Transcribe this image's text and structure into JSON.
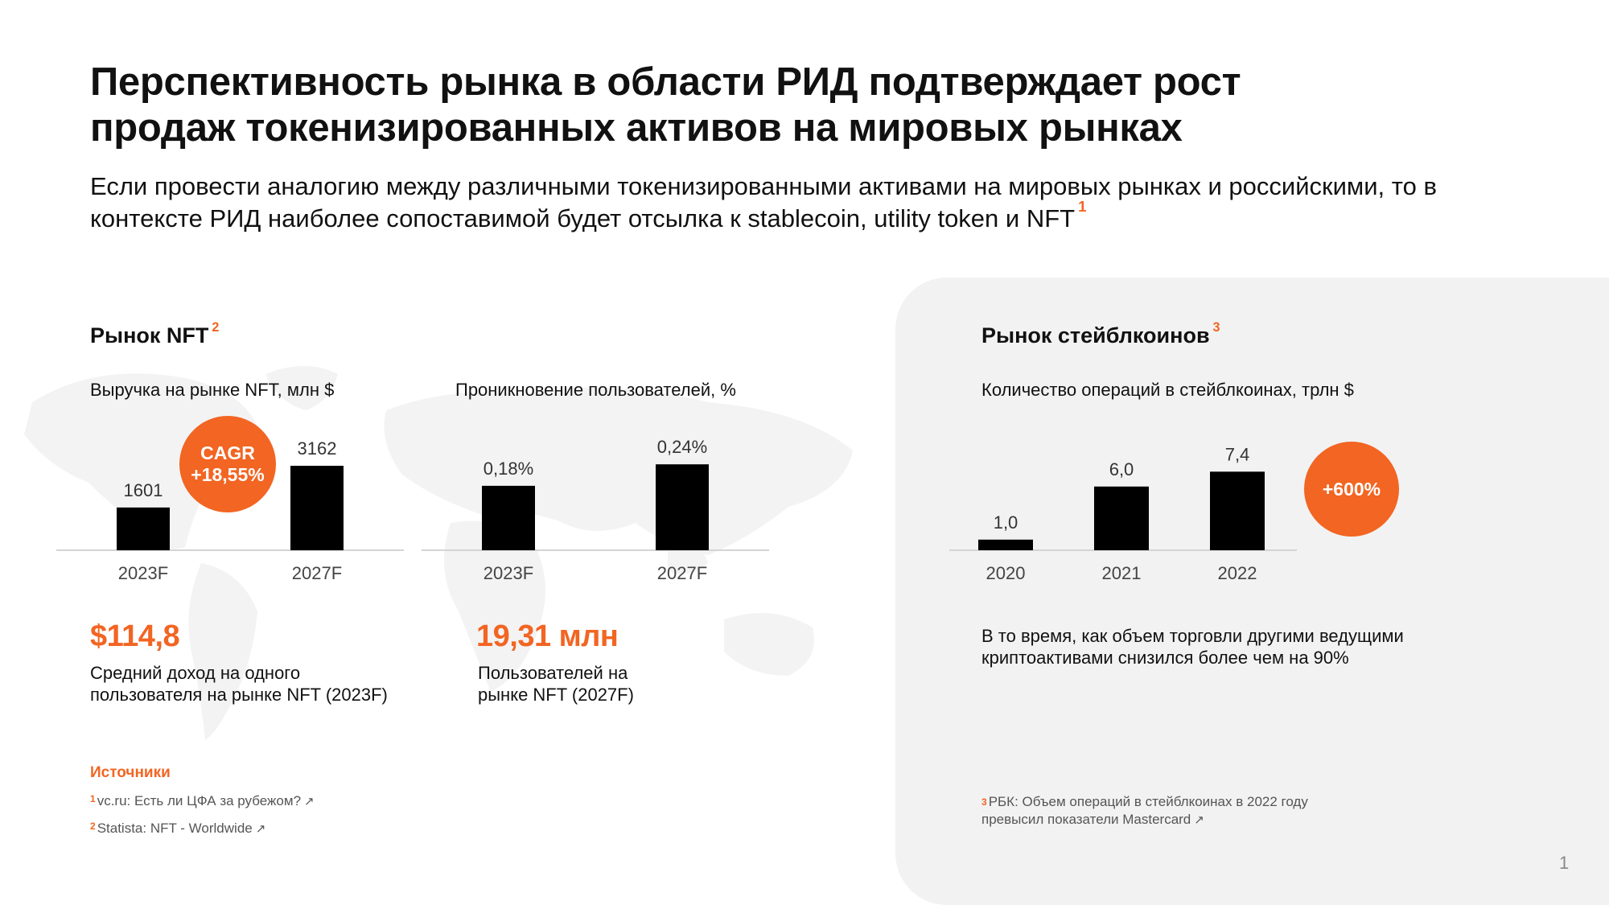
{
  "title": "Перспективность рынка в области РИД подтверждает рост продаж токенизированных активов на мировых рынках",
  "subtitle": "Если провести аналогию между различными токенизированными активами на мировых рынках и российскими, то в контексте РИД наиболее сопоставимой будет отсылка к stablecoin, utility token и NFT",
  "subtitle_footnote": "1",
  "nft": {
    "heading": "Рынок NFT",
    "heading_footnote": "2",
    "revenue_label": "Выручка на рынке NFT, млн $",
    "penetration_label": "Проникновение пользователей, %",
    "cagr_line1": "CAGR",
    "cagr_line2": "+18,55%",
    "stat1_value": "$114,8",
    "stat1_caption_line1": "Средний доход на одного",
    "stat1_caption_line2": "пользователя на рынке NFT (2023F)",
    "stat2_value": "19,31 млн",
    "stat2_caption_line1": "Пользователей на",
    "stat2_caption_line2": "рынке NFT (2027F)"
  },
  "stable": {
    "heading": "Рынок стейблкоинов",
    "heading_footnote": "3",
    "label": "Количество операций в стейблкоинах, трлн $",
    "growth_badge": "+600%",
    "note_line1": "В то время, как объем торговли другими ведущими",
    "note_line2": "криптоактивами снизился более чем на 90%",
    "source_num": "3",
    "source_line1": "РБК: Объем операций в стейблкоинах в 2022 году",
    "source_line2": "превысил показатели Mastercard"
  },
  "sources": {
    "title": "Источники",
    "items": [
      {
        "num": "1",
        "text": "vc.ru: Есть ли ЦФА за рубежом?"
      },
      {
        "num": "2",
        "text": "Statista: NFT - Worldwide"
      }
    ]
  },
  "page_number": "1",
  "colors": {
    "accent": "#f26522",
    "bar": "#000000",
    "panel": "#f2f2f2"
  },
  "chart_data": [
    {
      "type": "bar",
      "title": "Выручка на рынке NFT, млн $",
      "categories": [
        "2023F",
        "2027F"
      ],
      "values": [
        1601,
        3162
      ],
      "labels": [
        "1601",
        "3162"
      ]
    },
    {
      "type": "bar",
      "title": "Проникновение пользователей, %",
      "categories": [
        "2023F",
        "2027F"
      ],
      "values": [
        0.18,
        0.24
      ],
      "labels": [
        "0,18%",
        "0,24%"
      ]
    },
    {
      "type": "bar",
      "title": "Количество операций в стейблкоинах, трлн $",
      "categories": [
        "2020",
        "2021",
        "2022"
      ],
      "values": [
        1.0,
        6.0,
        7.4
      ],
      "labels": [
        "1,0",
        "6,0",
        "7,4"
      ]
    }
  ]
}
